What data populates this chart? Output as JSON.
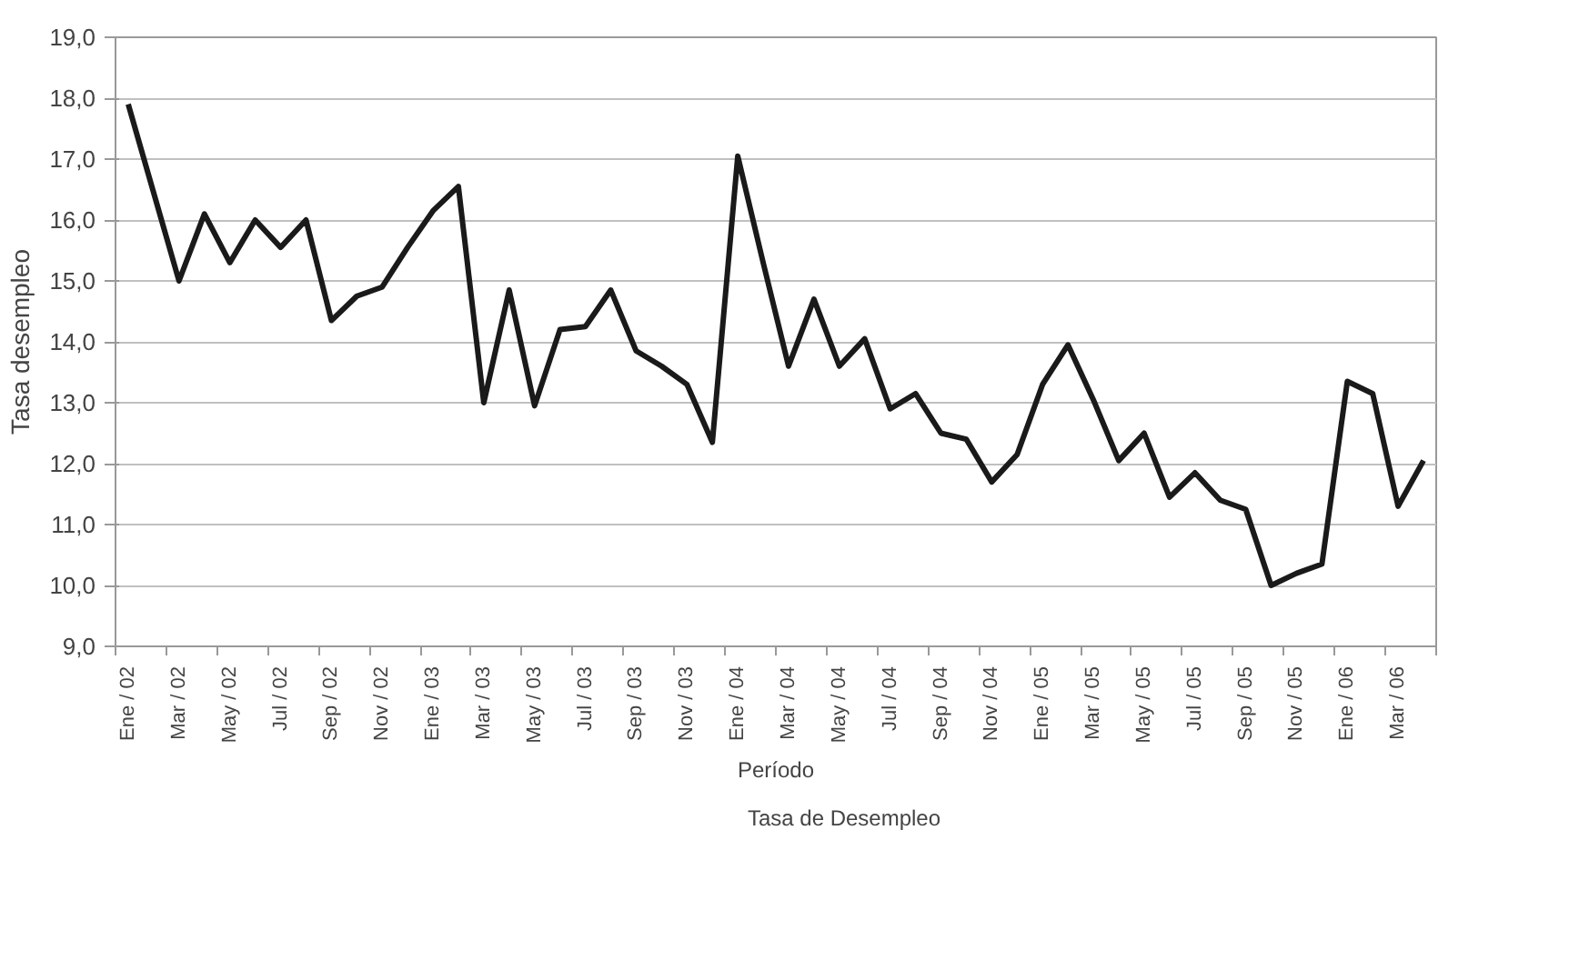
{
  "chart_data": {
    "type": "line",
    "xlabel": "Período",
    "ylabel": "Tasa desempleo",
    "categories": [
      "Ene / 02",
      null,
      "Mar / 02",
      null,
      "May / 02",
      null,
      "Jul / 02",
      null,
      "Sep / 02",
      null,
      "Nov / 02",
      null,
      "Ene / 03",
      null,
      "Mar / 03",
      null,
      "May / 03",
      null,
      "Jul / 03",
      null,
      "Sep / 03",
      null,
      "Nov / 03",
      null,
      "Ene / 04",
      null,
      "Mar / 04",
      null,
      "May / 04",
      null,
      "Jul / 04",
      null,
      "Sep / 04",
      null,
      "Nov / 04",
      null,
      "Ene / 05",
      null,
      "Mar / 05",
      null,
      "May / 05",
      null,
      "Jul / 05",
      null,
      "Sep / 05",
      null,
      "Nov / 05",
      null,
      "Ene / 06",
      null,
      "Mar / 06",
      null
    ],
    "series": [
      {
        "name": "Tasa de Desempleo",
        "color": "#1a1a1a",
        "values": [
          17.9,
          16.45,
          15.0,
          16.1,
          15.3,
          16.0,
          15.55,
          16.0,
          14.35,
          14.75,
          14.9,
          15.55,
          16.15,
          16.55,
          13.0,
          14.85,
          12.95,
          14.2,
          14.25,
          14.85,
          13.85,
          13.6,
          13.3,
          12.35,
          17.05,
          15.3,
          13.6,
          14.7,
          13.6,
          14.05,
          12.9,
          13.15,
          12.5,
          12.4,
          11.7,
          12.15,
          13.3,
          13.95,
          13.05,
          12.05,
          12.5,
          11.45,
          11.85,
          11.4,
          11.25,
          10.0,
          10.2,
          10.35,
          13.35,
          13.15,
          11.3,
          12.05
        ]
      }
    ],
    "ylim": [
      9,
      19
    ],
    "yticks": [
      {
        "value": 9,
        "label": "9,0"
      },
      {
        "value": 10,
        "label": "10,0"
      },
      {
        "value": 11,
        "label": "11,0"
      },
      {
        "value": 12,
        "label": "12,0"
      },
      {
        "value": 13,
        "label": "13,0"
      },
      {
        "value": 14,
        "label": "14,0"
      },
      {
        "value": 15,
        "label": "15,0"
      },
      {
        "value": 16,
        "label": "16,0"
      },
      {
        "value": 17,
        "label": "17,0"
      },
      {
        "value": 18,
        "label": "18,0"
      },
      {
        "value": 19,
        "label": "19,0"
      }
    ],
    "grid": "y",
    "legend": "bottom",
    "marker": "none",
    "line_style": "solid"
  }
}
